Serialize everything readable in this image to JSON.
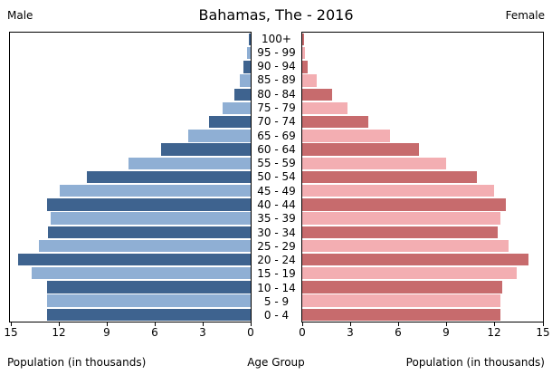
{
  "chart_data": {
    "type": "bar",
    "subtype": "population-pyramid",
    "title": "Bahamas, The - 2016",
    "left_header": "Male",
    "right_header": "Female",
    "xlabel_left": "Population (in thousands)",
    "xlabel_center": "Age Group",
    "xlabel_right": "Population (in thousands)",
    "units": "thousands",
    "xlim": [
      0,
      15
    ],
    "x_ticks": [
      0,
      3,
      6,
      9,
      12,
      15
    ],
    "grid": false,
    "legend": "none",
    "categories_top_to_bottom": [
      "100+",
      "95 - 99",
      "90 - 94",
      "85 - 89",
      "80 - 84",
      "75 - 79",
      "70 - 74",
      "65 - 69",
      "60 - 64",
      "55 - 59",
      "50 - 54",
      "45 - 49",
      "40 - 44",
      "35 - 39",
      "30 - 34",
      "25 - 29",
      "20 - 24",
      "15 - 19",
      "10 - 14",
      "5 - 9",
      "0 - 4"
    ],
    "series": [
      {
        "name": "Male",
        "side": "left",
        "values": [
          0.1,
          0.2,
          0.45,
          0.7,
          1.0,
          1.75,
          2.6,
          3.9,
          5.6,
          7.6,
          10.2,
          11.9,
          12.7,
          12.5,
          12.65,
          13.2,
          14.5,
          13.7,
          12.7,
          12.7,
          12.7
        ]
      },
      {
        "name": "Female",
        "side": "right",
        "values": [
          0.1,
          0.15,
          0.35,
          0.9,
          1.85,
          2.85,
          4.1,
          5.5,
          7.3,
          9.0,
          10.9,
          12.0,
          12.7,
          12.4,
          12.2,
          12.9,
          14.1,
          13.4,
          12.5,
          12.4,
          12.4
        ]
      }
    ],
    "colors": {
      "male_dark": "#3e638f",
      "male_light": "#8fafd4",
      "female_dark": "#c76b6d",
      "female_light": "#f3aeb2",
      "axis": "#000000",
      "background": "#ffffff"
    }
  }
}
